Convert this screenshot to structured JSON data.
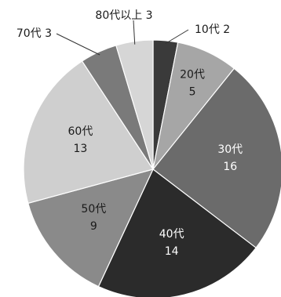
{
  "chart_data": {
    "type": "pie",
    "title": "",
    "start_angle_deg": 0,
    "direction": "clockwise",
    "slices": [
      {
        "label": "10代",
        "value": 2,
        "color": "#3a3a3a",
        "text_color": "#1a1a1a",
        "outside": true
      },
      {
        "label": "20代",
        "value": 5,
        "color": "#a6a6a6",
        "text_color": "#1a1a1a",
        "outside": false
      },
      {
        "label": "30代",
        "value": 16,
        "color": "#6b6b6b",
        "text_color": "#ffffff",
        "outside": false
      },
      {
        "label": "40代",
        "value": 14,
        "color": "#2b2b2b",
        "text_color": "#ffffff",
        "outside": false
      },
      {
        "label": "50代",
        "value": 9,
        "color": "#8a8a8a",
        "text_color": "#1a1a1a",
        "outside": false
      },
      {
        "label": "60代",
        "value": 13,
        "color": "#cfcfcf",
        "text_color": "#1a1a1a",
        "outside": false
      },
      {
        "label": "70代",
        "value": 3,
        "color": "#7a7a7a",
        "text_color": "#1a1a1a",
        "outside": true
      },
      {
        "label": "80代以上",
        "value": 3,
        "color": "#d6d6d6",
        "text_color": "#1a1a1a",
        "outside": true
      }
    ]
  }
}
